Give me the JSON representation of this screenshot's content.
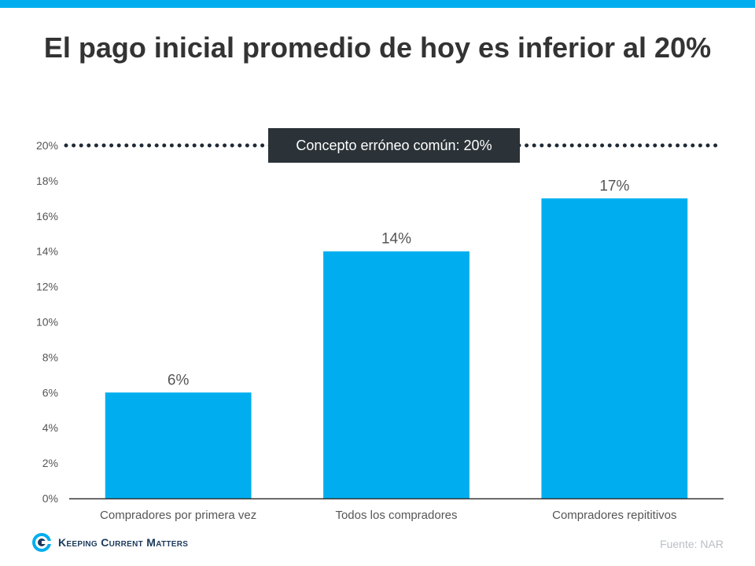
{
  "title": "El pago inicial promedio de hoy es inferior al 20%",
  "colors": {
    "accent": "#00aeef",
    "bar": "#00aeef",
    "title": "#333333",
    "axis_text": "#555555",
    "reference_line": "#1f2a36",
    "callout_bg": "#2b3338",
    "callout_text": "#ffffff",
    "source_text": "#b9bfc6",
    "logo_text": "#1b3a5c"
  },
  "chart_data": {
    "type": "bar",
    "title": "El pago inicial promedio de hoy es inferior al 20%",
    "categories": [
      "Compradores por primera vez",
      "Todos los compradores",
      "Compradores repititivos"
    ],
    "values": [
      6,
      14,
      17
    ],
    "data_labels": [
      "6%",
      "14%",
      "17%"
    ],
    "yticks": [
      "0%",
      "2%",
      "4%",
      "6%",
      "8%",
      "10%",
      "12%",
      "14%",
      "16%",
      "18%",
      "20%"
    ],
    "ylim": [
      0,
      20
    ],
    "grid": false,
    "reference_line": {
      "value": 20,
      "style": "dotted",
      "label": "Concepto erróneo común: 20%"
    }
  },
  "footer": {
    "logo_icon": "kcm-logo-icon",
    "logo_text": "Keeping Current Matters",
    "source": "Fuente:  NAR"
  }
}
